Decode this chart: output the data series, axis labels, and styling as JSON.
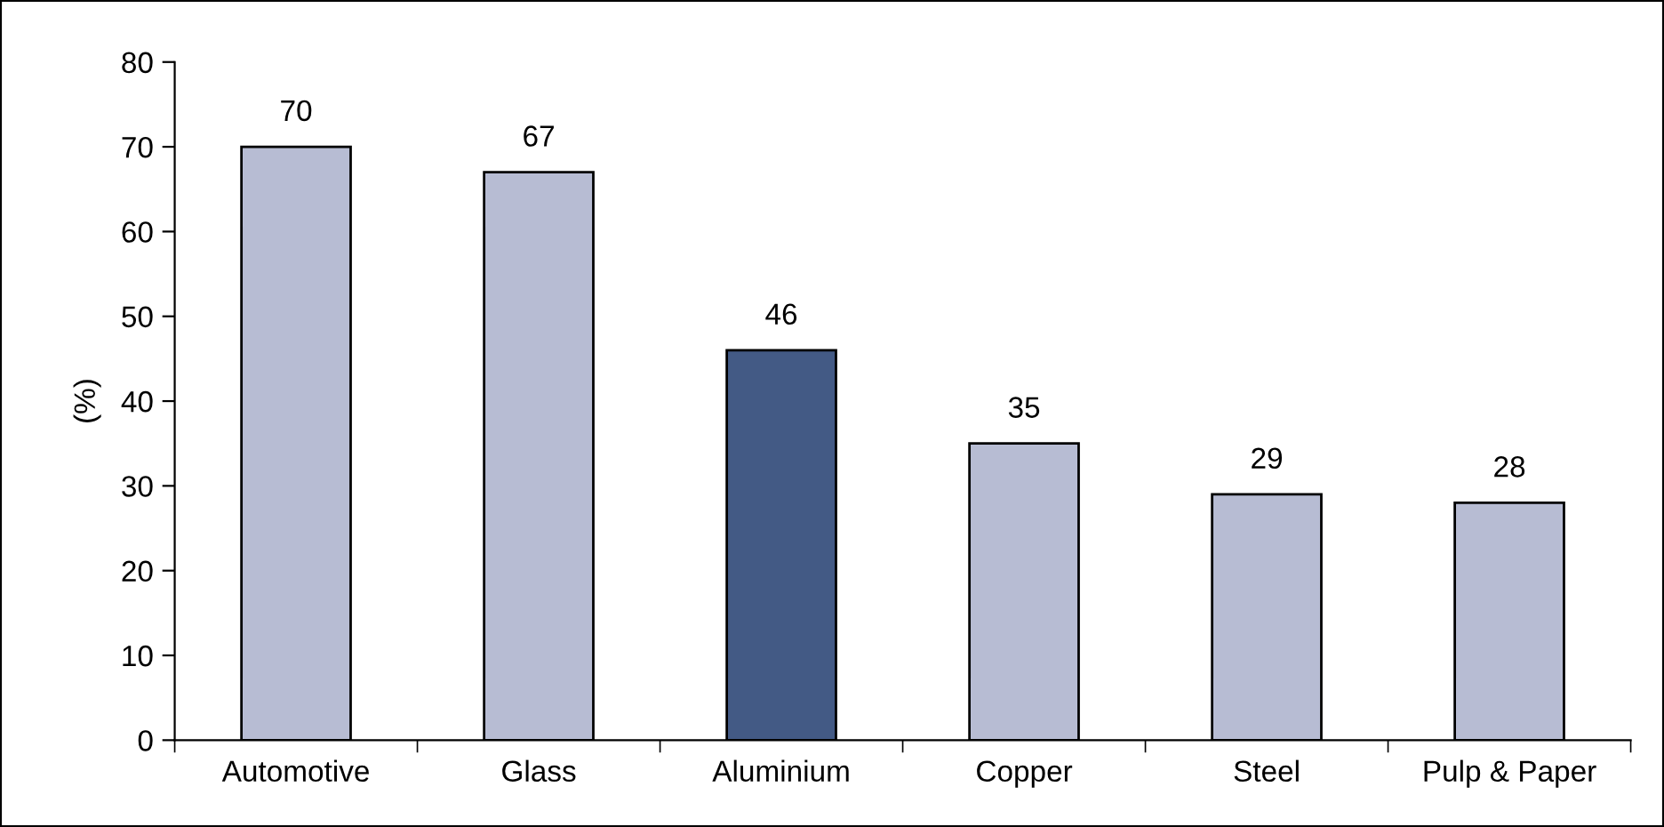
{
  "chart_data": {
    "type": "bar",
    "ylabel": "(%)",
    "categories": [
      "Automotive",
      "Glass",
      "Aluminium",
      "Copper",
      "Steel",
      "Pulp & Paper"
    ],
    "values": [
      70,
      67,
      46,
      35,
      29,
      28
    ],
    "colors": [
      "#b7bcd3",
      "#b7bcd3",
      "#435a85",
      "#b7bcd3",
      "#b7bcd3",
      "#b7bcd3"
    ],
    "ylim": [
      0,
      80
    ],
    "yticks": [
      0,
      10,
      20,
      30,
      40,
      50,
      60,
      70,
      80
    ],
    "data_labels": true,
    "grid": false,
    "legend": false
  }
}
